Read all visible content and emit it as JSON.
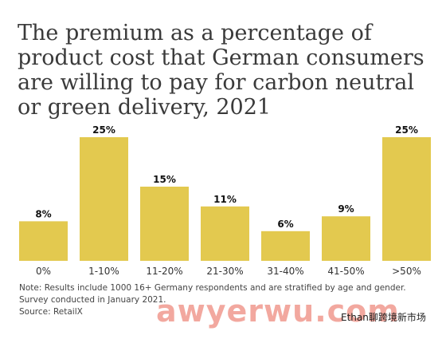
{
  "title": "The premium as a percentage of product cost that German consumers are willing to pay for carbon neutral or green delivery, 2021",
  "chart_data": {
    "type": "bar",
    "categories": [
      "0%",
      "1-10%",
      "11-20%",
      "21-30%",
      "31-40%",
      "41-50%",
      ">50%"
    ],
    "values": [
      8,
      25,
      15,
      11,
      6,
      9,
      25
    ],
    "value_labels": [
      "8%",
      "25%",
      "15%",
      "11%",
      "6%",
      "9%",
      "25%"
    ],
    "ylim": [
      0,
      25
    ],
    "grid": false,
    "bar_color": "#e3c94f"
  },
  "notes": {
    "line1": "Note: Results include 1000 16+ Germany respondents and are stratified by age and gender.",
    "line2": "Survey conducted in January 2021.",
    "source": "Source: RetailX"
  },
  "watermark": {
    "text": "awyerwu.com",
    "right_text": "Ethan聊跨境新市场"
  }
}
